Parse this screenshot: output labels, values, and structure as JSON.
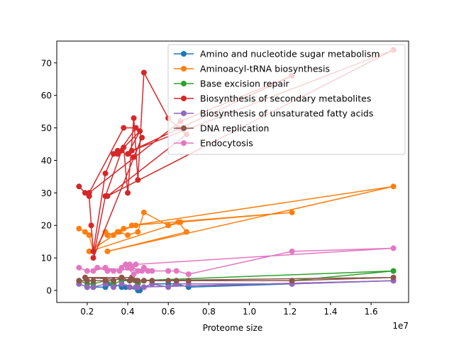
{
  "chart_data": {
    "type": "line",
    "title": "",
    "xlabel": "Proteome size",
    "ylabel": "",
    "x_offset_label": "1e7",
    "xlim": [
      0.05,
      1.785
    ],
    "ylim": [
      -3.7,
      76.7
    ],
    "x_ticks": [
      0.2,
      0.4,
      0.6,
      0.8,
      1.0,
      1.2,
      1.4,
      1.6
    ],
    "x_tick_labels": [
      "0.2",
      "0.4",
      "0.6",
      "0.8",
      "1.0",
      "1.2",
      "1.4",
      "1.6"
    ],
    "y_ticks": [
      0,
      10,
      20,
      30,
      40,
      50,
      60,
      70
    ],
    "y_tick_labels": [
      "0",
      "10",
      "20",
      "30",
      "40",
      "50",
      "60",
      "70"
    ],
    "grid": false,
    "legend_position": "top-right",
    "series": [
      {
        "name": "Amino and nucleotide sugar metabolism",
        "color": "#1f77b4",
        "x": [
          0.16,
          0.2,
          0.23,
          0.29,
          0.33,
          0.37,
          0.41,
          0.45,
          0.48,
          0.52,
          0.6,
          0.64,
          0.7,
          1.21,
          1.71,
          0.44,
          0.46,
          0.39,
          0.3
        ],
        "y": [
          2,
          1,
          1,
          1,
          2,
          1,
          1,
          0,
          1,
          2,
          2,
          2,
          1,
          2,
          3,
          1,
          0,
          1,
          2
        ]
      },
      {
        "name": "Aminoacyl-tRNA biosynthesis",
        "color": "#ff7f0e",
        "x": [
          0.16,
          0.19,
          0.21,
          0.23,
          0.29,
          0.33,
          0.36,
          0.4,
          0.45,
          0.48,
          0.6,
          0.65,
          0.69,
          0.3,
          1.71,
          0.42,
          1.21,
          0.66,
          0.21,
          0.38,
          0.44,
          0.35,
          0.3
        ],
        "y": [
          19,
          18,
          17,
          12,
          18,
          17,
          18,
          17,
          18,
          24,
          20,
          21,
          18,
          12,
          32,
          20,
          24,
          21,
          12,
          19,
          20,
          18,
          17
        ]
      },
      {
        "name": "Base excision  repair",
        "color": "#2ca02c",
        "x": [
          0.16,
          0.2,
          0.23,
          0.29,
          0.33,
          0.37,
          0.41,
          0.45,
          0.48,
          0.52,
          0.6,
          0.64,
          0.7,
          1.21,
          1.71,
          0.44
        ],
        "y": [
          3,
          2,
          2,
          3,
          2,
          3,
          3,
          2,
          3,
          3,
          3,
          3,
          3,
          3,
          6,
          3
        ]
      },
      {
        "name": "Biosynthesis of  secondary metabolites",
        "color": "#d62728",
        "x": [
          0.16,
          0.19,
          0.21,
          0.22,
          0.23,
          0.29,
          0.33,
          0.35,
          0.38,
          0.4,
          0.43,
          0.45,
          0.48,
          0.6,
          0.65,
          0.69,
          0.3,
          1.71,
          0.42,
          1.21,
          0.66,
          0.21,
          0.38,
          0.44,
          0.35,
          0.46,
          0.4,
          0.43,
          0.47,
          0.23,
          0.29,
          0.37
        ],
        "y": [
          32,
          30,
          29,
          20,
          12,
          36,
          42,
          43,
          44,
          30,
          53,
          34,
          67,
          53,
          50,
          48,
          29,
          74,
          43,
          66,
          52,
          30,
          50,
          50,
          42,
          49,
          42,
          41,
          47,
          10,
          29,
          43
        ]
      },
      {
        "name": "Biosynthesis of unsaturated fatty acids",
        "color": "#9467bd",
        "x": [
          0.16,
          0.2,
          0.23,
          0.29,
          0.33,
          0.37,
          0.41,
          0.45,
          0.48,
          0.52,
          0.6,
          0.64,
          0.7,
          1.21,
          1.71,
          0.44
        ],
        "y": [
          2,
          1,
          1,
          2,
          1,
          2,
          1,
          1,
          1,
          2,
          1,
          2,
          2,
          2,
          3,
          1
        ]
      },
      {
        "name": "DNA replication",
        "color": "#8c564b",
        "x": [
          0.16,
          0.2,
          0.23,
          0.29,
          0.33,
          0.37,
          0.41,
          0.45,
          0.48,
          0.52,
          0.6,
          0.64,
          0.7,
          1.21,
          1.71,
          0.44,
          0.19,
          0.42
        ],
        "y": [
          3,
          3,
          3,
          3,
          3,
          4,
          3,
          3,
          3,
          3,
          3,
          3,
          3,
          3,
          4,
          3,
          4,
          4
        ]
      },
      {
        "name": "Endocytosis",
        "color": "#e377c2",
        "x": [
          0.16,
          0.2,
          0.23,
          0.29,
          0.33,
          0.37,
          0.41,
          0.45,
          0.48,
          0.52,
          0.6,
          0.64,
          0.7,
          1.21,
          1.71,
          0.44,
          0.39,
          0.42,
          0.36,
          0.3,
          0.25,
          0.47,
          0.5,
          0.4,
          0.43
        ],
        "y": [
          7,
          6,
          6,
          7,
          6,
          7,
          8,
          6,
          7,
          6,
          6,
          6,
          5,
          12,
          13,
          8,
          8,
          7,
          6,
          6,
          7,
          6,
          6,
          7,
          5
        ]
      }
    ]
  }
}
